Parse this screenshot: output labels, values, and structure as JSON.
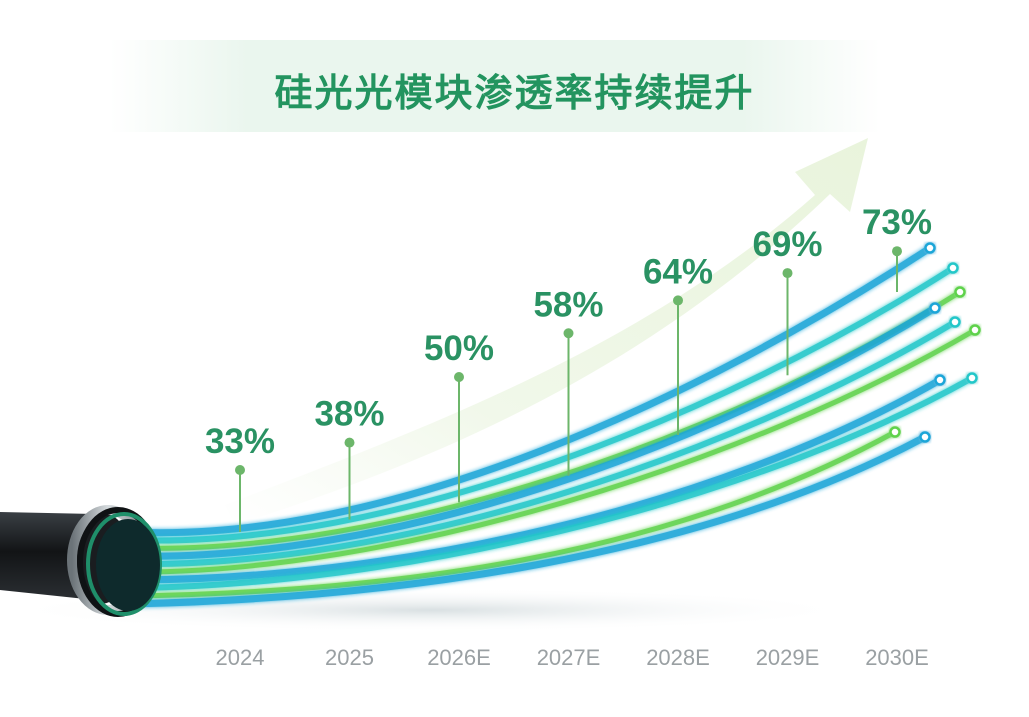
{
  "chart_data": {
    "type": "line",
    "title": "硅光光模块渗透率持续提升",
    "categories": [
      "2024",
      "2025",
      "2026E",
      "2027E",
      "2028E",
      "2029E",
      "2030E"
    ],
    "values": [
      33,
      38,
      50,
      58,
      64,
      69,
      73
    ],
    "value_labels": [
      "33%",
      "38%",
      "50%",
      "58%",
      "64%",
      "69%",
      "73%"
    ],
    "unit": "%",
    "legend": "none",
    "grid": false
  },
  "colors": {
    "title": "#23945f",
    "value_label": "#2a9263",
    "marker": "#6cb66a",
    "year_label": "#9aa0a3",
    "arrow": "#edf6e4",
    "fiber_blue": "#1aa6d8",
    "fiber_cyan": "#24c7c9",
    "fiber_green": "#5fd24b",
    "cable_jacket": "#1c1f22"
  }
}
